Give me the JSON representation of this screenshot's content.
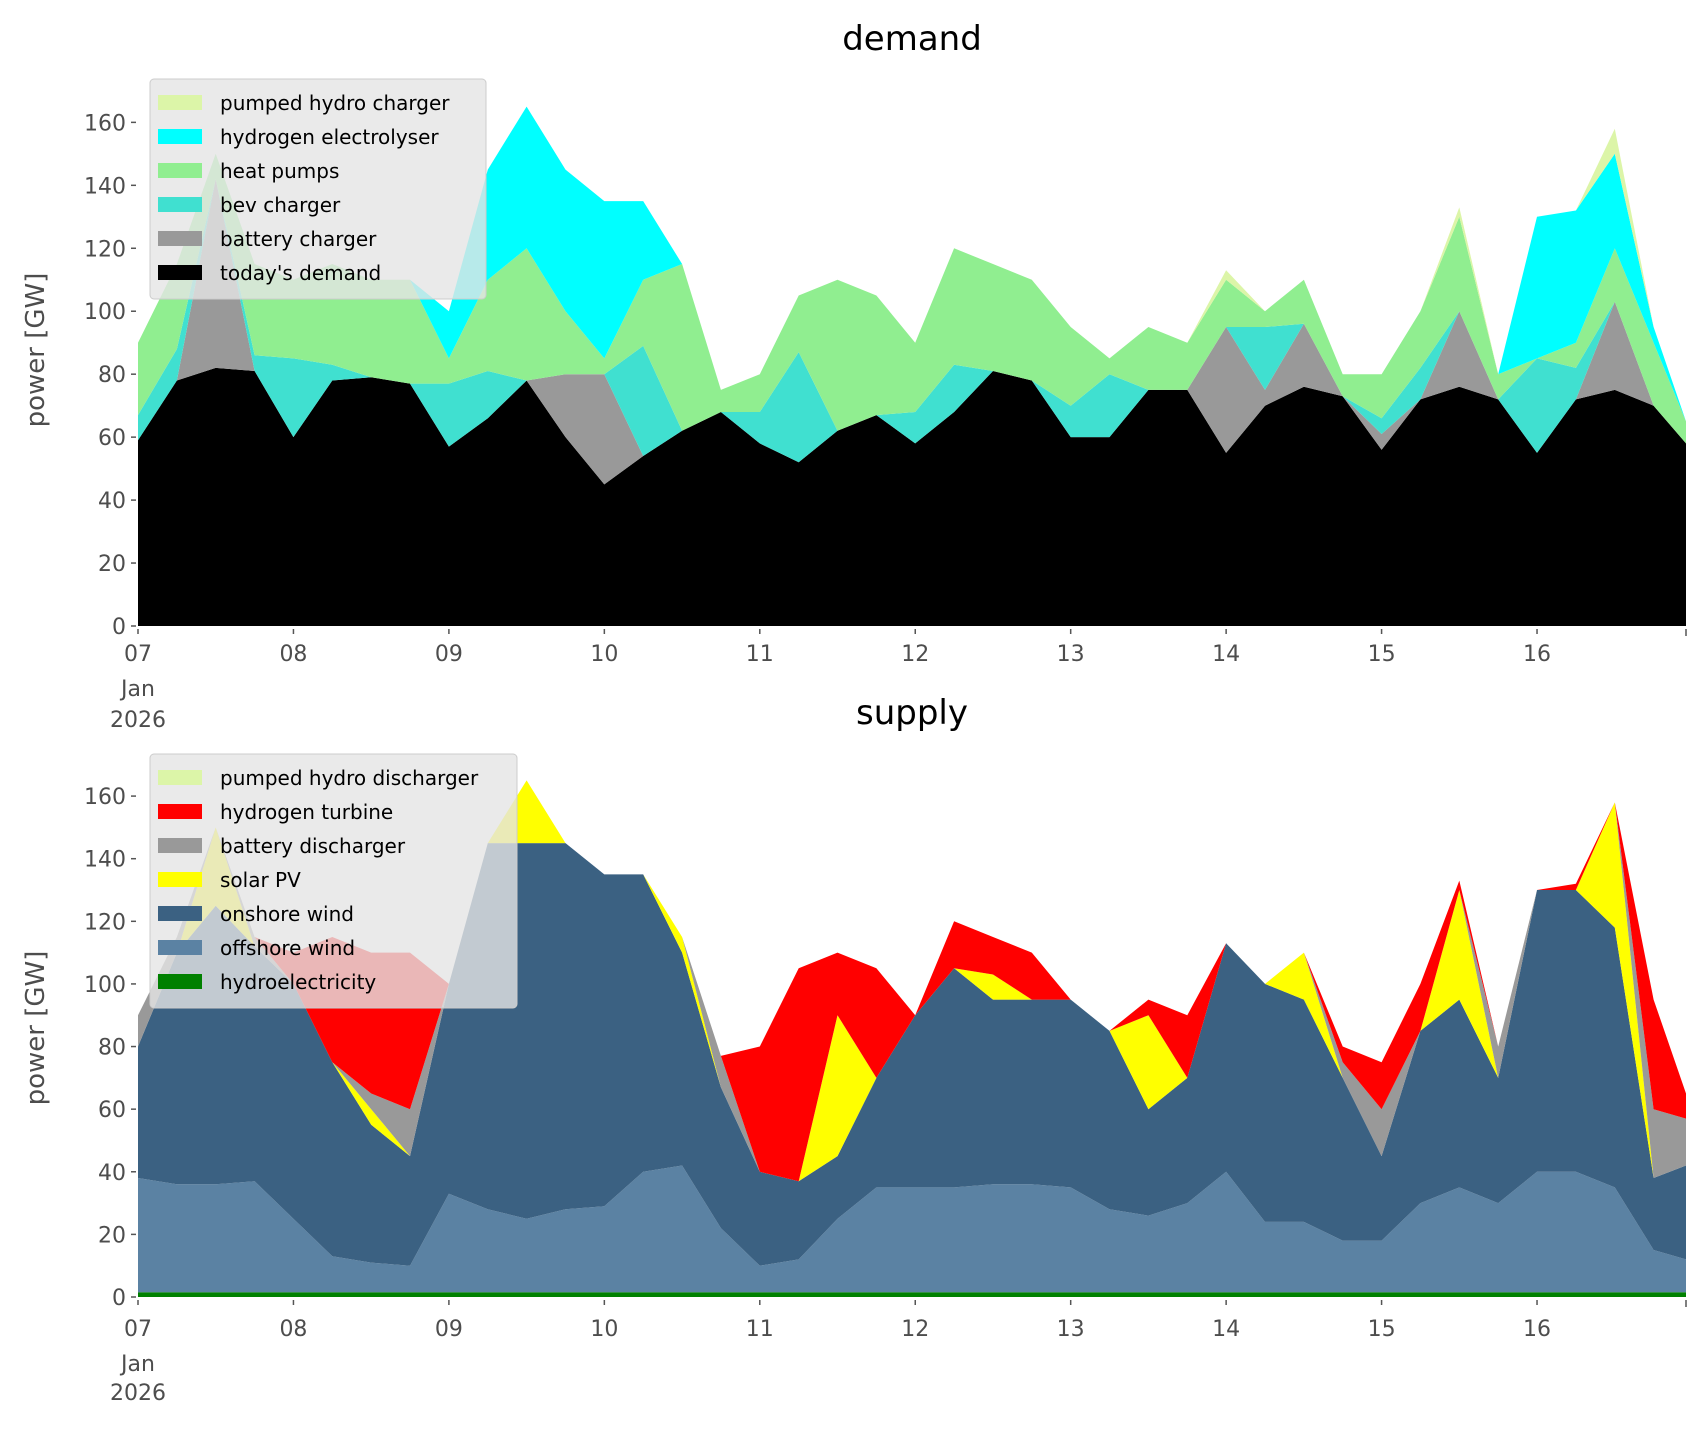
{
  "chart_data": [
    {
      "type": "area",
      "stacked": true,
      "title": "demand",
      "ylabel": "power [GW]",
      "xlabel": "",
      "ylim": [
        0,
        176
      ],
      "yticks": [
        "0",
        "20",
        "40",
        "60",
        "80",
        "100",
        "120",
        "140",
        "160"
      ],
      "xtick_labels": [
        "07",
        "08",
        "09",
        "10",
        "11",
        "12",
        "13",
        "14",
        "15",
        "16"
      ],
      "xtick_sublabels": [
        "Jan",
        "2026"
      ],
      "x_hours_from_2026_01_07": [
        0,
        6,
        12,
        18,
        24,
        30,
        36,
        42,
        48,
        54,
        60,
        66,
        72,
        78,
        84,
        90,
        96,
        102,
        108,
        114,
        120,
        126,
        132,
        138,
        144,
        150,
        156,
        162,
        168,
        174,
        180,
        186,
        192,
        198,
        204,
        210,
        216,
        222,
        228,
        234,
        239
      ],
      "legend_position": "top-left",
      "series": [
        {
          "name": "today's demand",
          "color": "#000000",
          "values": [
            59,
            78,
            82,
            81,
            60,
            78,
            79,
            77,
            57,
            66,
            78,
            60,
            45,
            54,
            62,
            68,
            58,
            52,
            62,
            67,
            58,
            68,
            81,
            78,
            60,
            60,
            75,
            75,
            55,
            70,
            76,
            73,
            56,
            72,
            76,
            72,
            55,
            72,
            75,
            70,
            58
          ]
        },
        {
          "name": "battery charger",
          "color": "#999999",
          "values": [
            0,
            0,
            60,
            0,
            0,
            0,
            0,
            0,
            0,
            0,
            0,
            20,
            35,
            0,
            0,
            0,
            0,
            0,
            0,
            0,
            0,
            0,
            0,
            0,
            0,
            0,
            0,
            0,
            40,
            5,
            20,
            0,
            5,
            0,
            24,
            0,
            0,
            0,
            28,
            0,
            0
          ]
        },
        {
          "name": "bev charger",
          "color": "#40e0d0",
          "values": [
            8,
            10,
            0,
            5,
            25,
            5,
            0,
            0,
            20,
            15,
            0,
            0,
            0,
            35,
            0,
            0,
            10,
            35,
            0,
            0,
            10,
            15,
            0,
            0,
            10,
            20,
            0,
            0,
            0,
            20,
            0,
            0,
            5,
            10,
            0,
            0,
            30,
            10,
            0,
            0,
            0
          ]
        },
        {
          "name": "heat pumps",
          "color": "#90ee90",
          "values": [
            23,
            27,
            8,
            29,
            25,
            32,
            31,
            33,
            8,
            29,
            42,
            20,
            5,
            21,
            53,
            7,
            12,
            18,
            48,
            38,
            22,
            37,
            34,
            32,
            25,
            5,
            20,
            15,
            15,
            5,
            14,
            7,
            14,
            18,
            30,
            8,
            0,
            8,
            17,
            20,
            7
          ]
        },
        {
          "name": "hydrogen electrolyser",
          "color": "#00ffff",
          "values": [
            0,
            0,
            0,
            0,
            0,
            0,
            0,
            0,
            15,
            35,
            45,
            45,
            50,
            25,
            0,
            0,
            0,
            0,
            0,
            0,
            0,
            0,
            0,
            0,
            0,
            0,
            0,
            0,
            0,
            0,
            0,
            0,
            0,
            0,
            0,
            0,
            45,
            42,
            30,
            5,
            0
          ]
        },
        {
          "name": "pumped hydro charger",
          "color": "#dcf5a8",
          "values": [
            0,
            0,
            0,
            0,
            0,
            0,
            0,
            0,
            0,
            0,
            0,
            0,
            0,
            0,
            0,
            0,
            0,
            0,
            0,
            0,
            0,
            0,
            0,
            0,
            0,
            0,
            0,
            0,
            3,
            0,
            0,
            0,
            0,
            0,
            3,
            0,
            0,
            0,
            8,
            0,
            0
          ]
        }
      ]
    },
    {
      "type": "area",
      "stacked": true,
      "title": "supply",
      "ylabel": "power [GW]",
      "xlabel": "",
      "ylim": [
        0,
        176
      ],
      "yticks": [
        "0",
        "20",
        "40",
        "60",
        "80",
        "100",
        "120",
        "140",
        "160"
      ],
      "xtick_labels": [
        "07",
        "08",
        "09",
        "10",
        "11",
        "12",
        "13",
        "14",
        "15",
        "16"
      ],
      "xtick_sublabels": [
        "Jan",
        "2026"
      ],
      "x_hours_from_2026_01_07": [
        0,
        6,
        12,
        18,
        24,
        30,
        36,
        42,
        48,
        54,
        60,
        66,
        72,
        78,
        84,
        90,
        96,
        102,
        108,
        114,
        120,
        126,
        132,
        138,
        144,
        150,
        156,
        162,
        168,
        174,
        180,
        186,
        192,
        198,
        204,
        210,
        216,
        222,
        228,
        234,
        239
      ],
      "legend_position": "top-left",
      "series": [
        {
          "name": "hydroelectricity",
          "color": "#008000",
          "values": [
            1.5,
            1.5,
            1.5,
            1.5,
            1.5,
            1.5,
            1.5,
            1.5,
            1.5,
            1.5,
            1.5,
            1.5,
            1.5,
            1.5,
            1.5,
            1.5,
            1.5,
            1.5,
            1.5,
            1.5,
            1.5,
            1.5,
            1.5,
            1.5,
            1.5,
            1.5,
            1.5,
            1.5,
            1.5,
            1.5,
            1.5,
            1.5,
            1.5,
            1.5,
            1.5,
            1.5,
            1.5,
            1.5,
            1.5,
            1.5,
            1.5
          ]
        },
        {
          "name": "offshore wind",
          "color": "#5b82a3",
          "values": [
            36.5,
            34.5,
            34.5,
            35.5,
            23.5,
            11.5,
            9.5,
            8.5,
            31.5,
            26.5,
            23.5,
            26.5,
            27.5,
            38.5,
            40.5,
            20.5,
            8.5,
            10.5,
            23.5,
            33.5,
            33.5,
            33.5,
            34.5,
            34.5,
            33.5,
            26.5,
            24.5,
            28.5,
            38.5,
            22.5,
            22.5,
            16.5,
            16.5,
            28.5,
            33.5,
            28.5,
            38.5,
            38.5,
            33.5,
            13.5,
            10.5
          ]
        },
        {
          "name": "onshore wind",
          "color": "#3b6182",
          "values": [
            42,
            74,
            89,
            75,
            75,
            62,
            44,
            35,
            67,
            117,
            120,
            117,
            106,
            95,
            68,
            45,
            30,
            25,
            20,
            35,
            55,
            70,
            59,
            59,
            60,
            57,
            34,
            40,
            73,
            76,
            71,
            52,
            27,
            55,
            60,
            40,
            90,
            90,
            83,
            23,
            30
          ]
        },
        {
          "name": "solar PV",
          "color": "#ffff00",
          "values": [
            0,
            0,
            25,
            0,
            0,
            0,
            5,
            0,
            0,
            0,
            20,
            0,
            0,
            0,
            5,
            0,
            0,
            0,
            45,
            0,
            0,
            0,
            8,
            0,
            0,
            0,
            30,
            0,
            0,
            0,
            15,
            0,
            0,
            0,
            35,
            0,
            0,
            0,
            40,
            0,
            0
          ]
        },
        {
          "name": "battery discharger",
          "color": "#999999",
          "values": [
            10,
            5,
            0,
            3,
            0,
            0,
            5,
            15,
            0,
            0,
            0,
            0,
            0,
            0,
            0,
            10,
            0,
            0,
            0,
            0,
            0,
            0,
            0,
            0,
            0,
            0,
            0,
            0,
            0,
            0,
            0,
            5,
            15,
            0,
            0,
            10,
            0,
            0,
            0,
            22,
            15
          ]
        },
        {
          "name": "hydrogen turbine",
          "color": "#ff0000",
          "values": [
            0,
            0,
            0,
            0,
            10,
            40,
            45,
            50,
            0,
            0,
            0,
            0,
            0,
            0,
            0,
            0,
            40,
            68,
            20,
            35,
            0,
            15,
            12,
            15,
            0,
            0,
            5,
            20,
            0,
            0,
            0,
            5,
            15,
            15,
            3,
            0,
            0,
            2,
            0,
            35,
            8
          ]
        },
        {
          "name": "pumped hydro discharger",
          "color": "#dcf5a8",
          "values": [
            0,
            0,
            0,
            0,
            0,
            0,
            0,
            0,
            0,
            0,
            0,
            0,
            0,
            0,
            0,
            0,
            0,
            0,
            0,
            0,
            0,
            0,
            0,
            0,
            0,
            0,
            0,
            0,
            0,
            0,
            0,
            0,
            0,
            0,
            0,
            0,
            0,
            0,
            0,
            0,
            0
          ]
        }
      ]
    }
  ]
}
